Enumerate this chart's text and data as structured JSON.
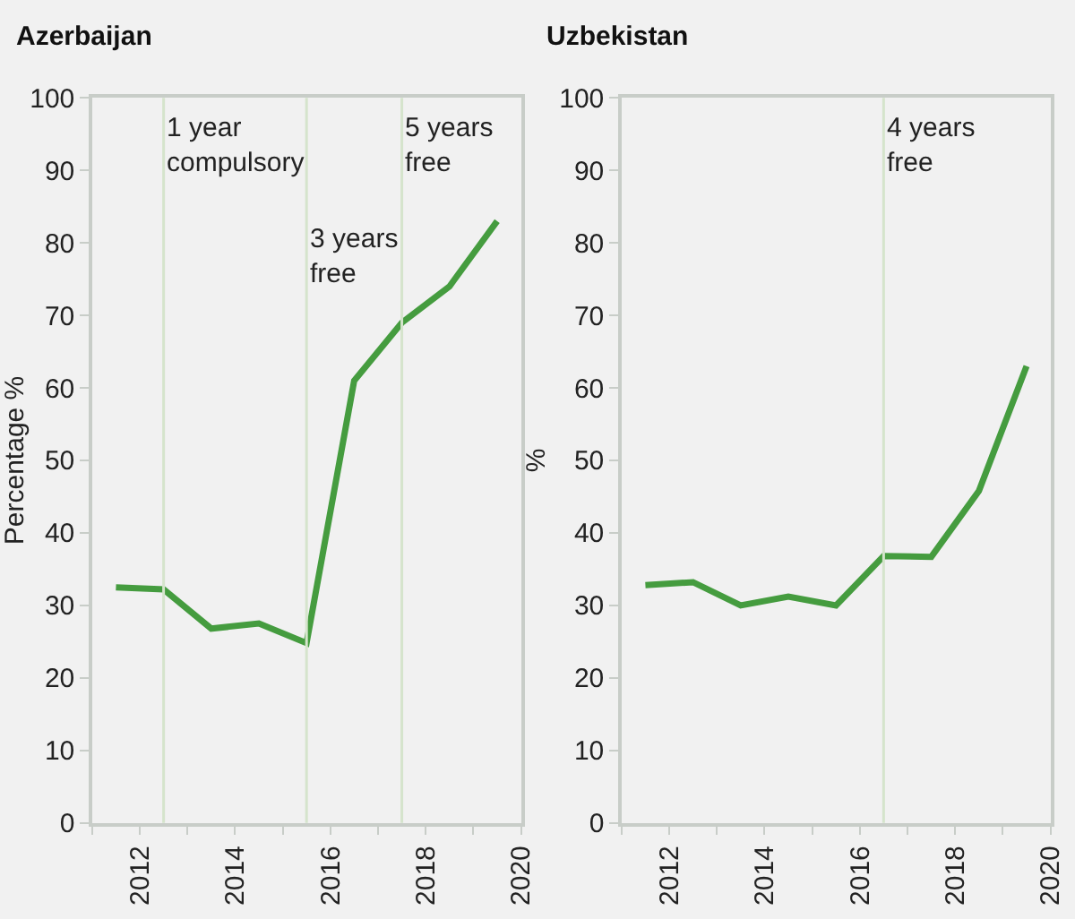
{
  "chart_data": [
    {
      "type": "line",
      "title": "Azerbaijan",
      "ylabel": "Percentage %",
      "x": [
        2011.5,
        2012.5,
        2013.5,
        2014.5,
        2015.5,
        2016.5,
        2017.5,
        2018.5,
        2019.5
      ],
      "series": [
        {
          "color": "#459c3f",
          "values": [
            32.5,
            32.2,
            26.8,
            27.5,
            24.8,
            61,
            69,
            74,
            83
          ]
        }
      ],
      "xlim": [
        2011,
        2020
      ],
      "xticks": [
        {
          "value": 2011,
          "label": null
        },
        2012,
        {
          "value": 2013,
          "label": null
        },
        2014,
        {
          "value": 2015,
          "label": null
        },
        2016,
        {
          "value": 2017,
          "label": null
        },
        2018,
        {
          "value": 2019,
          "label": null
        },
        2020
      ],
      "ylim": [
        0,
        100
      ],
      "yticks": [
        0,
        10,
        20,
        30,
        40,
        50,
        60,
        70,
        80,
        90,
        100
      ],
      "grid": false,
      "ref_lines": [
        {
          "axis": "x",
          "value": 2012.5,
          "label": "1 year\ncompulsory",
          "color": "#d5e4cc"
        },
        {
          "axis": "x",
          "value": 2015.5,
          "label": "3 years\nfree",
          "color": "#d5e4cc"
        },
        {
          "axis": "x",
          "value": 2017.5,
          "label": "5 years\nfree",
          "color": "#d5e4cc"
        }
      ]
    },
    {
      "type": "line",
      "title": "Uzbekistan",
      "ylabel": "%",
      "x": [
        2011.5,
        2012.5,
        2013.5,
        2014.5,
        2015.5,
        2016.5,
        2017.5,
        2018.5,
        2019.5
      ],
      "series": [
        {
          "color": "#459c3f",
          "values": [
            32.8,
            33.2,
            30,
            31.2,
            30,
            36.8,
            36.7,
            45.8,
            63
          ]
        }
      ],
      "xlim": [
        2011,
        2020
      ],
      "xticks": [
        {
          "value": 2011,
          "label": null
        },
        2012,
        {
          "value": 2013,
          "label": null
        },
        2014,
        {
          "value": 2015,
          "label": null
        },
        2016,
        {
          "value": 2017,
          "label": null
        },
        2018,
        {
          "value": 2019,
          "label": null
        },
        2020
      ],
      "ylim": [
        0,
        100
      ],
      "yticks": [
        0,
        10,
        20,
        30,
        40,
        50,
        60,
        70,
        80,
        90,
        100
      ],
      "grid": false,
      "ref_lines": [
        {
          "axis": "x",
          "value": 2016.5,
          "label": "4 years\nfree",
          "color": "#d5e4cc"
        }
      ]
    }
  ]
}
